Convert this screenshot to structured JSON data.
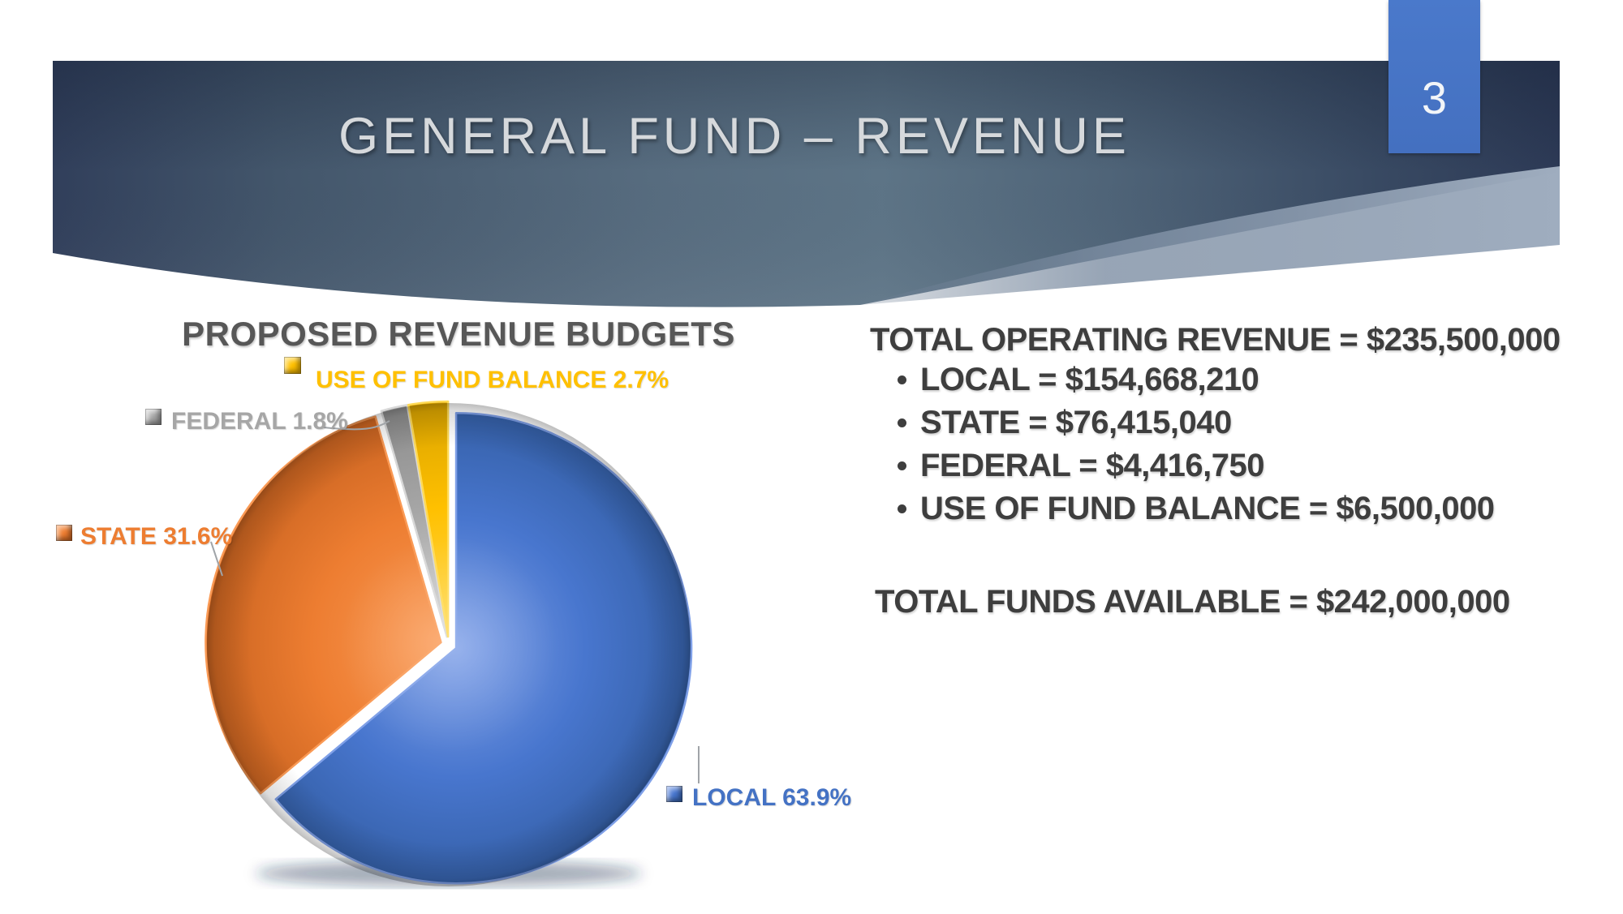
{
  "slide": {
    "title": "GENERAL FUND – REVENUE",
    "page_number": "3"
  },
  "theme": {
    "badge_blue": "#4472C4",
    "banner_dark_navy": "#2e3c57",
    "banner_mid_slate": "#5d7486",
    "banner_swoosh_light": "#9fadbf",
    "title_text": "#d6d9dc",
    "body_text_gray": "#3e3e3e",
    "chart_title_gray": "#575757"
  },
  "chart_data": {
    "type": "pie",
    "title": "PROPOSED REVENUE BUDGETS",
    "direction": "clockwise",
    "start_angle_deg": 0,
    "legend_position": "callout-labels",
    "slices": [
      {
        "label": "LOCAL",
        "value": 63.9,
        "label_text": "LOCAL 63.9%",
        "color": "#4876CE",
        "color_light": "#7fa0e8",
        "color_dark": "#3560A8",
        "text_color": "#4472C4"
      },
      {
        "label": "STATE",
        "value": 31.6,
        "label_text": "STATE 31.6%",
        "color": "#ED7D31",
        "color_light": "#FA9A55",
        "color_dark": "#C96320",
        "text_color": "#ED7D31"
      },
      {
        "label": "FEDERAL",
        "value": 1.8,
        "label_text": "FEDERAL 1.8%",
        "color": "#A6A6A6",
        "color_light": "#D8D8D8",
        "color_dark": "#8C8C8C",
        "text_color": "#A6A6A6"
      },
      {
        "label": "USE OF FUND BALANCE",
        "value": 2.7,
        "label_text": "USE OF FUND BALANCE 2.7%",
        "color": "#FFC000",
        "color_light": "#FFDA55",
        "color_dark": "#D9A300",
        "text_color": "#FFC000"
      }
    ]
  },
  "details": {
    "heading": "TOTAL OPERATING REVENUE = $235,500,000",
    "bullets": [
      "LOCAL = $154,668,210",
      "STATE = $76,415,040",
      "FEDERAL = $4,416,750",
      "USE OF FUND BALANCE = $6,500,000"
    ],
    "total": "TOTAL FUNDS AVAILABLE = $242,000,000"
  }
}
